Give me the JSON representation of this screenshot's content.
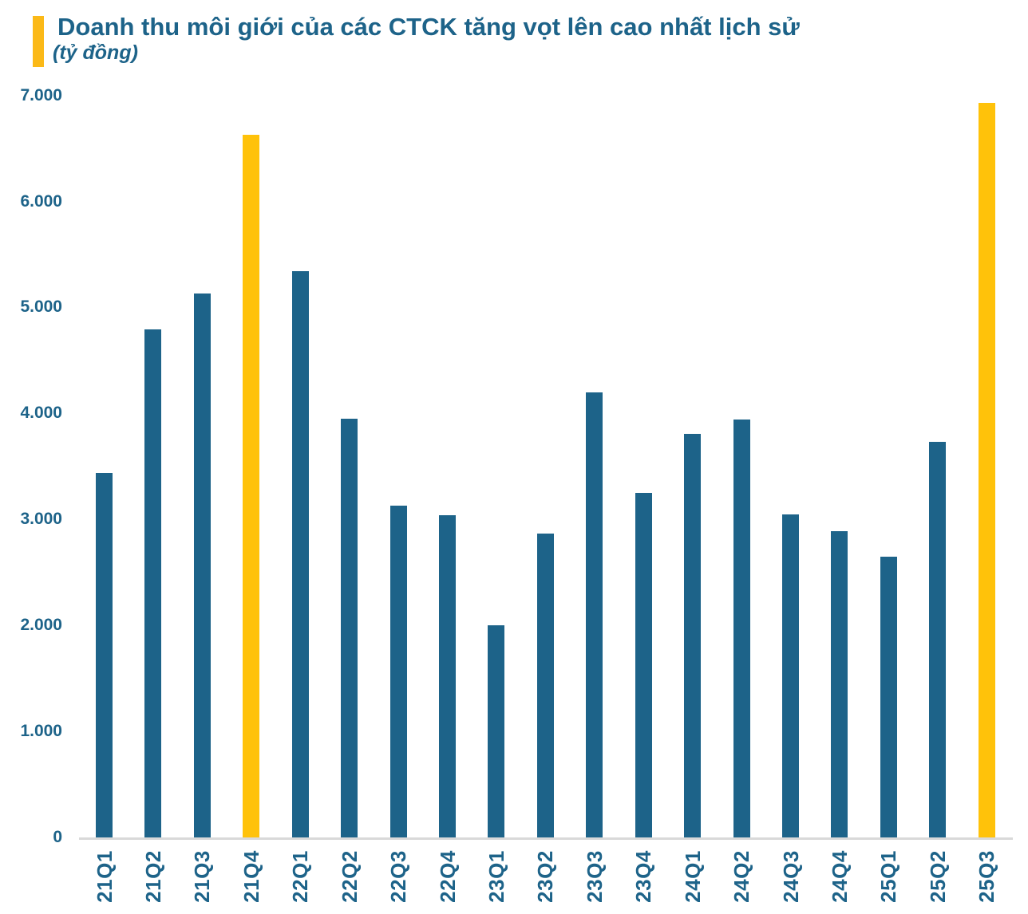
{
  "header": {
    "title": "Doanh thu môi giới của các CTCK tăng vọt lên cao nhất lịch sử",
    "subtitle": "(tỷ đồng)"
  },
  "colors": {
    "bar": "#1D6389",
    "highlight": "#FFC20A",
    "accent": "#FBB917",
    "text": "#1D6389",
    "axis_line": "#D9D9D9"
  },
  "chart_data": {
    "type": "bar",
    "title": "Doanh thu môi giới của các CTCK tăng vọt lên cao nhất lịch sử",
    "unit_label": "(tỷ đồng)",
    "xlabel": "",
    "ylabel": "tỷ đồng",
    "categories": [
      "21Q1",
      "21Q2",
      "21Q3",
      "21Q4",
      "22Q1",
      "22Q2",
      "22Q3",
      "22Q4",
      "23Q1",
      "23Q2",
      "23Q3",
      "23Q4",
      "24Q1",
      "24Q2",
      "24Q3",
      "24Q4",
      "25Q1",
      "25Q2",
      "25Q3"
    ],
    "values": [
      3440,
      4790,
      5130,
      6630,
      5340,
      3950,
      3130,
      3040,
      2000,
      2870,
      4200,
      3250,
      3810,
      3940,
      3050,
      2890,
      2650,
      3730,
      6930
    ],
    "highlight_categories": [
      "21Q4",
      "25Q3"
    ],
    "y_ticks": [
      0,
      1000,
      2000,
      3000,
      4000,
      5000,
      6000,
      7000
    ],
    "y_tick_labels": [
      "0",
      "1.000",
      "2.000",
      "3.000",
      "4.000",
      "5.000",
      "6.000",
      "7.000"
    ],
    "ylim": [
      0,
      7000
    ],
    "grid": false,
    "legend": false,
    "x_tick_rotation_deg": 90
  }
}
